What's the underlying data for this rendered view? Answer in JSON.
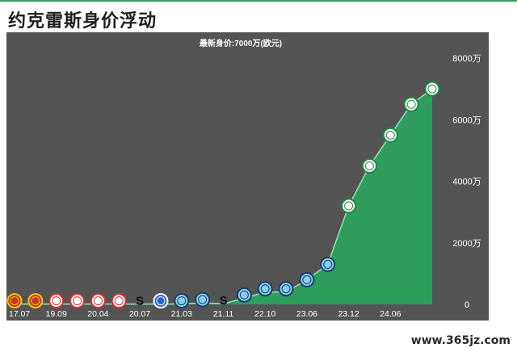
{
  "page": {
    "title": "约克雷斯身价浮动",
    "watermark": "www.365jz.com"
  },
  "colors": {
    "background": "#545454",
    "area": "#2f9e5c",
    "line": "#8fe3b0",
    "text": "#ffffff"
  },
  "chart_data": {
    "type": "area",
    "title": "最新身价:7000万(欧元)",
    "y_unit": "万",
    "ylim": [
      0,
      8000
    ],
    "y_ticks": [
      0,
      2000,
      4000,
      6000,
      8000
    ],
    "y_tick_labels": [
      "0",
      "2000万",
      "4000万",
      "6000万",
      "8000万"
    ],
    "x_tick_labels": [
      "17.07",
      "19.09",
      "20.04",
      "20.07",
      "21.03",
      "21.11",
      "22.10",
      "23.06",
      "23.12",
      "24.06"
    ],
    "grid": false,
    "legend": "none",
    "series": [
      {
        "values": [
          10,
          10,
          10,
          10,
          10,
          10,
          10,
          10,
          10,
          50,
          20,
          200,
          400,
          400,
          800,
          1300,
          3200,
          4500,
          5500,
          6500,
          7000
        ],
        "markers": [
          "club-a-badge",
          "club-a-badge",
          "club-b-badge",
          "club-b-badge",
          "club-b-badge",
          "club-b-badge",
          "club-c-badge",
          "club-d-badge",
          "club-e-badge",
          "club-e-badge",
          "club-c-badge",
          "club-e-badge",
          "club-e-badge",
          "club-e-badge",
          "club-e-badge",
          "club-e-badge",
          "club-f-badge",
          "club-f-badge",
          "club-f-badge",
          "club-f-badge",
          "club-f-badge"
        ]
      }
    ]
  }
}
